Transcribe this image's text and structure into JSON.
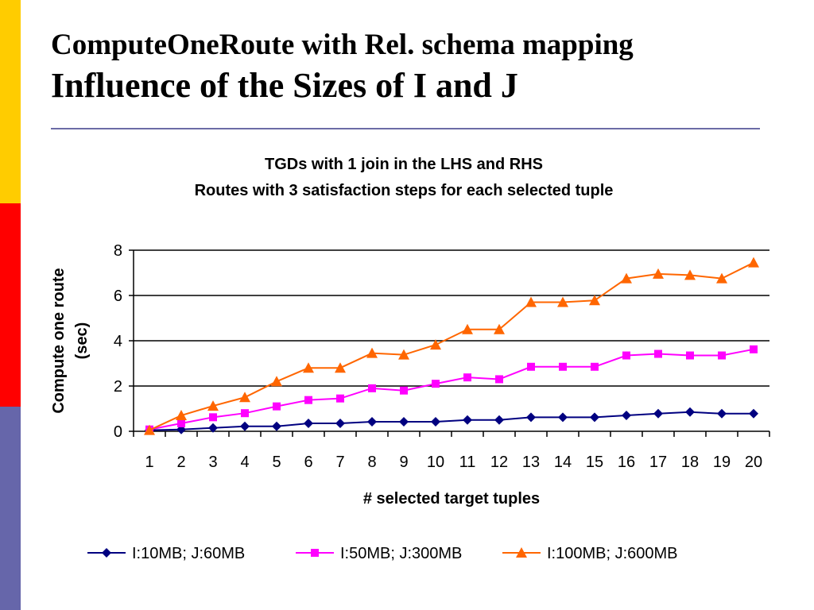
{
  "slide": {
    "title_line1": "ComputeOneRoute with Rel. schema mapping",
    "title_line2": "Influence of  the Sizes of  I and J",
    "side_bar_colors": [
      "#ffcc00",
      "#ff0000",
      "#6666aa"
    ],
    "rule_color": "#6b6ba6"
  },
  "chart_data": {
    "type": "line",
    "title": "TGDs with 1 join in the LHS and RHS",
    "subtitle": "Routes with 3 satisfaction steps for each selected tuple",
    "xlabel": "# selected target tuples",
    "ylabel_lines": [
      "Compute one route",
      "(sec)"
    ],
    "categories": [
      "1",
      "2",
      "3",
      "4",
      "5",
      "6",
      "7",
      "8",
      "9",
      "10",
      "11",
      "12",
      "13",
      "14",
      "15",
      "16",
      "17",
      "18",
      "19",
      "20"
    ],
    "ylim": [
      0,
      8
    ],
    "yticks": [
      "0",
      "2",
      "4",
      "6",
      "8"
    ],
    "grid": true,
    "legend_position": "bottom",
    "series": [
      {
        "name": "I:10MB; J:60MB",
        "color": "#000080",
        "marker": "diamond",
        "values": [
          0.05,
          0.08,
          0.15,
          0.22,
          0.22,
          0.35,
          0.35,
          0.42,
          0.42,
          0.42,
          0.5,
          0.5,
          0.62,
          0.62,
          0.62,
          0.7,
          0.78,
          0.85,
          0.78,
          0.78
        ]
      },
      {
        "name": "I:50MB; J:300MB",
        "color": "#ff00ff",
        "marker": "square",
        "values": [
          0.08,
          0.35,
          0.62,
          0.8,
          1.1,
          1.38,
          1.45,
          1.9,
          1.8,
          2.1,
          2.38,
          2.3,
          2.85,
          2.85,
          2.85,
          3.35,
          3.42,
          3.35,
          3.35,
          3.62
        ]
      },
      {
        "name": "I:100MB; J:600MB",
        "color": "#ff6600",
        "marker": "triangle",
        "values": [
          0.05,
          0.7,
          1.12,
          1.5,
          2.2,
          2.8,
          2.8,
          3.45,
          3.38,
          3.82,
          4.5,
          4.5,
          5.7,
          5.7,
          5.78,
          6.75,
          6.95,
          6.9,
          6.75,
          7.45
        ]
      }
    ]
  }
}
